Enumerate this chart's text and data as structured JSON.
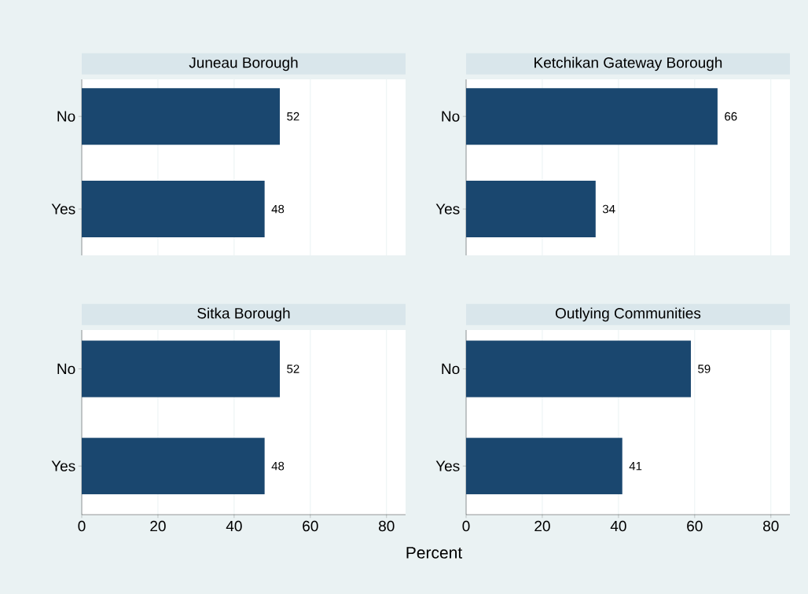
{
  "chart_data": [
    {
      "type": "bar",
      "orientation": "horizontal",
      "title": "Juneau Borough",
      "categories": [
        "No",
        "Yes"
      ],
      "values": [
        52,
        48
      ],
      "color": "#1a476f",
      "data_labels": true,
      "xlim": [
        0,
        85
      ],
      "xticks": [
        0,
        20,
        40,
        60,
        80
      ],
      "grid": "x",
      "tick_labels": "y"
    },
    {
      "type": "bar",
      "orientation": "horizontal",
      "title": "Ketchikan Gateway Borough",
      "categories": [
        "No",
        "Yes"
      ],
      "values": [
        66,
        34
      ],
      "color": "#1a476f",
      "data_labels": true,
      "xlim": [
        0,
        85
      ],
      "xticks": [
        0,
        20,
        40,
        60,
        80
      ],
      "grid": "x",
      "tick_labels": "y"
    },
    {
      "type": "bar",
      "orientation": "horizontal",
      "title": "Sitka Borough",
      "xlabel": "Percent",
      "categories": [
        "No",
        "Yes"
      ],
      "values": [
        52,
        48
      ],
      "color": "#1a476f",
      "data_labels": true,
      "xlim": [
        0,
        85
      ],
      "xticks": [
        0,
        20,
        40,
        60,
        80
      ],
      "grid": "x"
    },
    {
      "type": "bar",
      "orientation": "horizontal",
      "title": "Outlying Communities",
      "categories": [
        "No",
        "Yes"
      ],
      "values": [
        59,
        41
      ],
      "color": "#1a476f",
      "data_labels": true,
      "xlim": [
        0,
        85
      ],
      "xticks": [
        0,
        20,
        40,
        60,
        80
      ],
      "grid": "x"
    }
  ]
}
